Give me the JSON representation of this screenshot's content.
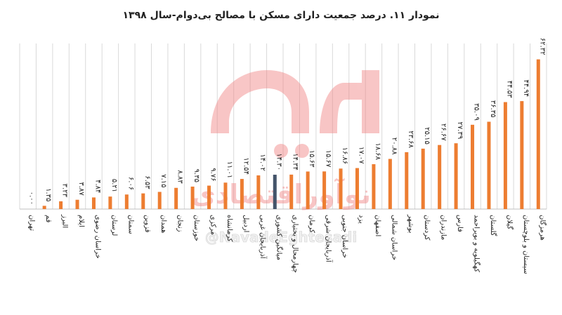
{
  "chart_data": {
    "type": "bar",
    "title": "نمودار ۱۱. درصد جمعیت دارای مسکن با مصالح بی‌دوام-سال ۱۳۹۸",
    "xlabel": "",
    "ylabel": "",
    "ylim": [
      0,
      66
    ],
    "grid": "vertical",
    "highlight_index": 15,
    "colors": {
      "bar": "#ed7d31",
      "highlight": "#44546a",
      "grid": "#d9d9d9"
    },
    "categories": [
      "تهران",
      "قم",
      "البرز",
      "ایلام",
      "خراسان رضوی",
      "لرستان",
      "سمنان",
      "قزوین",
      "همدان",
      "زنجان",
      "خوزستان",
      "مرکزی",
      "کرمانشاه",
      "اردبیل",
      "آذربایجان غربی",
      "میانگین کشوری",
      "چهارمحال و بختیاری",
      "کرمان",
      "آذربایجان شرقی",
      "خراسان جنوبی",
      "یزد",
      "اصفهان",
      "خراسان شمالی",
      "بوشهر",
      "کردستان",
      "مازندران",
      "فارس",
      "کهگیلویه و بویراحمد",
      "گلستان",
      "گیلان",
      "سیستان و بلوچستان",
      "هرمزگان"
    ],
    "values": [
      0.0,
      1.35,
      3.23,
      3.87,
      4.84,
      5.21,
      6.06,
      6.53,
      7.15,
      8.83,
      9.35,
      9.76,
      11.01,
      12.54,
      14.02,
      14.3,
      14.34,
      15.63,
      15.67,
      16.86,
      17.07,
      18.68,
      20.88,
      23.68,
      25.15,
      26.67,
      27.39,
      35.09,
      36.35,
      44.53,
      44.94,
      62.32
    ],
    "value_labels": [
      "۰.۰۰",
      "۱.۳۵",
      "۳.۲۳",
      "۳.۸۷",
      "۴.۸۴",
      "۵.۲۱",
      "۶.۰۶",
      "۶.۵۳",
      "۷.۱۵",
      "۸.۸۳",
      "۹.۳۵",
      "۹.۷۶",
      "۱۱.۰۱",
      "۱۲.۵۴",
      "۱۴.۰۲",
      "۱۴.۳۰",
      "۱۴.۳۴",
      "۱۵.۶۳",
      "۱۵.۶۷",
      "۱۶.۸۶",
      "۱۷.۰۷",
      "۱۸.۶۸",
      "۲۰.۸۸",
      "۲۳.۶۸",
      "۲۵.۱۵",
      "۲۶.۶۷",
      "۲۷.۳۹",
      "۳۵.۰۹",
      "۳۶.۳۵",
      "۴۴.۵۳",
      "۴۴.۹۴",
      "۶۲.۳۲"
    ]
  },
  "watermark": {
    "logo_text": "نو",
    "brand_text": "نوآوراقتصادی",
    "handle": "@NavadeEghtesadi",
    "color": "#f08080"
  }
}
